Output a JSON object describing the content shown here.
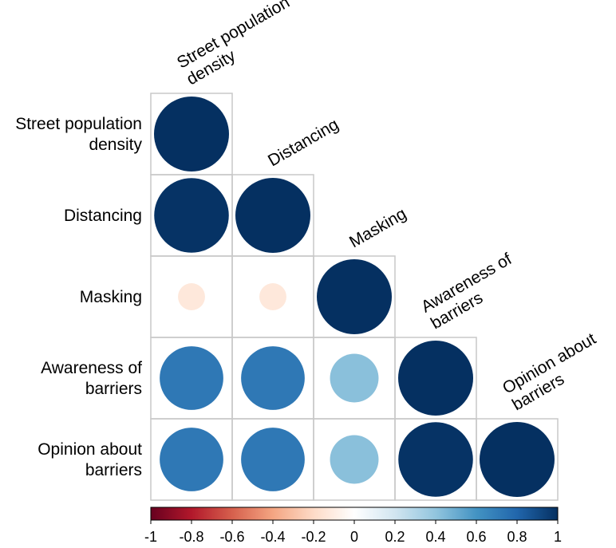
{
  "chart_data": {
    "type": "heatmap",
    "subtype": "correlation-matrix-lower-triangle",
    "variables": [
      "Street population density",
      "Distancing",
      "Masking",
      "Awareness of barriers",
      "Opinion about barriers"
    ],
    "row_labels": [
      [
        "Street population",
        "density"
      ],
      [
        "Distancing"
      ],
      [
        "Masking"
      ],
      [
        "Awareness of",
        "barriers"
      ],
      [
        "Opinion about",
        "barriers"
      ]
    ],
    "diag_labels": [
      [
        "Street population",
        "density"
      ],
      [
        "Distancing"
      ],
      [
        "Masking"
      ],
      [
        "Awareness of",
        "barriers"
      ],
      [
        "Opinion about",
        "barriers"
      ]
    ],
    "matrix": [
      [
        1.0
      ],
      [
        0.99,
        1.0
      ],
      [
        -0.13,
        -0.13,
        1.0
      ],
      [
        0.72,
        0.72,
        0.42,
        1.0
      ],
      [
        0.72,
        0.72,
        0.42,
        0.99,
        1.0
      ]
    ],
    "marker": "circle",
    "colorbar": {
      "range": [
        -1,
        1
      ],
      "ticks": [
        "-1",
        "-0.8",
        "-0.6",
        "-0.4",
        "-0.2",
        "0",
        "0.2",
        "0.4",
        "0.6",
        "0.8",
        "1"
      ],
      "colors": [
        "#67001F",
        "#B2182B",
        "#D6604D",
        "#F4A582",
        "#FDDBC7",
        "#FFFFFF",
        "#D1E5F0",
        "#92C5DE",
        "#4393C3",
        "#2166AC",
        "#053061"
      ],
      "placement": "bottom"
    },
    "grid": true
  }
}
